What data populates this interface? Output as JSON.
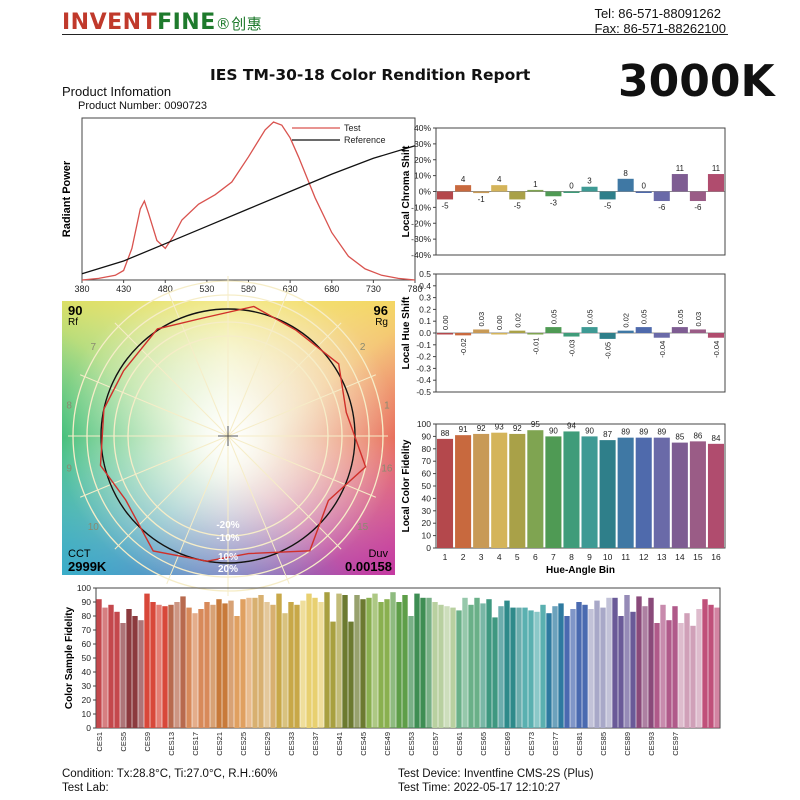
{
  "header": {
    "logo_text_left": "INVENT",
    "logo_text_right": "FINE",
    "logo_cjk": "®创惠",
    "tel": "Tel: 86-571-88091262",
    "fax": "Fax: 86-571-88262100"
  },
  "report": {
    "title": "IES TM-30-18 Color Rendition Report",
    "cct_badge": "3000K",
    "product_info_label": "Product Infomation",
    "product_number": "Product Number: 0090723"
  },
  "colors": {
    "brand_green": "#1e7a2c",
    "brand_red": "#c0392b",
    "test_line": "#d9534f",
    "reference_line": "#111111"
  },
  "chart_data": [
    {
      "type": "line",
      "title": "",
      "xlabel": "",
      "ylabel": "Radiant Power",
      "xlim": [
        380,
        780
      ],
      "x_ticks": [
        "380",
        "430",
        "480",
        "530",
        "580",
        "630",
        "680",
        "730",
        "780"
      ],
      "legend": [
        "Test",
        "Reference"
      ],
      "legend_position": "top-right",
      "series": [
        {
          "name": "Test",
          "x": [
            380,
            400,
            420,
            430,
            440,
            450,
            455,
            460,
            470,
            480,
            490,
            500,
            520,
            540,
            560,
            580,
            600,
            610,
            620,
            630,
            640,
            650,
            660,
            680,
            700,
            720,
            740,
            760,
            780
          ],
          "y": [
            0,
            0.01,
            0.03,
            0.06,
            0.2,
            0.45,
            0.5,
            0.42,
            0.25,
            0.2,
            0.28,
            0.38,
            0.48,
            0.54,
            0.62,
            0.78,
            0.95,
            1.0,
            0.98,
            0.9,
            0.78,
            0.65,
            0.52,
            0.3,
            0.15,
            0.07,
            0.03,
            0.01,
            0
          ]
        },
        {
          "name": "Reference",
          "x": [
            380,
            430,
            480,
            530,
            580,
            630,
            680,
            730,
            780
          ],
          "y": [
            0.04,
            0.12,
            0.23,
            0.34,
            0.45,
            0.56,
            0.67,
            0.77,
            0.85
          ]
        }
      ]
    },
    {
      "type": "bar",
      "title": "",
      "ylabel": "Local Chroma Shift",
      "ylim": [
        -40,
        40
      ],
      "y_ticks": [
        "40%",
        "30%",
        "20%",
        "10%",
        "0%",
        "-10%",
        "-20%",
        "-30%",
        "-40%"
      ],
      "categories": [
        "1",
        "2",
        "3",
        "4",
        "5",
        "6",
        "7",
        "8",
        "9",
        "10",
        "11",
        "12",
        "13",
        "14",
        "15",
        "16"
      ],
      "values": [
        -5,
        4,
        -1,
        4,
        -5,
        1,
        -3,
        0,
        3,
        -5,
        8,
        0,
        -6,
        11,
        -6,
        11
      ]
    },
    {
      "type": "bar",
      "title": "",
      "ylabel": "Local Hue Shift",
      "ylim": [
        -0.5,
        0.5
      ],
      "y_ticks": [
        "0.5",
        "0.4",
        "0.3",
        "0.2",
        "0.1",
        "0.0",
        "-0.1",
        "-0.2",
        "-0.3",
        "-0.4",
        "-0.5"
      ],
      "categories": [
        "1",
        "2",
        "3",
        "4",
        "5",
        "6",
        "7",
        "8",
        "9",
        "10",
        "11",
        "12",
        "13",
        "14",
        "15",
        "16"
      ],
      "values": [
        0.0,
        -0.02,
        0.03,
        0.0,
        0.02,
        -0.01,
        0.05,
        -0.03,
        0.05,
        -0.05,
        0.02,
        0.05,
        -0.04,
        0.05,
        0.03,
        -0.04
      ],
      "value_labels": [
        "0.00",
        "-0.02",
        "0.03",
        "0.00",
        "0.02",
        "-0.01",
        "0.05",
        "-0.03",
        "0.05",
        "-0.05",
        "0.02",
        "0.05",
        "-0.04",
        "0.05",
        "0.03",
        "-0.04"
      ]
    },
    {
      "type": "bar",
      "title": "",
      "xlabel": "Hue-Angle Bin",
      "ylabel": "Local Color Fidelity",
      "ylim": [
        0,
        100
      ],
      "y_ticks": [
        "0",
        "10",
        "20",
        "30",
        "40",
        "50",
        "60",
        "70",
        "80",
        "90",
        "100"
      ],
      "categories": [
        "1",
        "2",
        "3",
        "4",
        "5",
        "6",
        "7",
        "8",
        "9",
        "10",
        "11",
        "12",
        "13",
        "14",
        "15",
        "16"
      ],
      "values": [
        88,
        91,
        92,
        93,
        92,
        95,
        90,
        94,
        90,
        87,
        89,
        89,
        89,
        85,
        86,
        84
      ]
    },
    {
      "type": "bar",
      "title": "",
      "ylabel": "Color Sample Fidelity",
      "ylim": [
        0,
        100
      ],
      "y_ticks": [
        "0",
        "10",
        "20",
        "30",
        "40",
        "50",
        "60",
        "70",
        "80",
        "90",
        "100"
      ],
      "x_tick_labels": [
        "CES1",
        "CES5",
        "CES9",
        "CES13",
        "CES17",
        "CES21",
        "CES25",
        "CES29",
        "CES33",
        "CES37",
        "CES41",
        "CES45",
        "CES49",
        "CES53",
        "CES57",
        "CES61",
        "CES65",
        "CES69",
        "CES73",
        "CES77",
        "CES81",
        "CES85",
        "CES89",
        "CES93",
        "CES97"
      ],
      "values": [
        92,
        86,
        88,
        83,
        75,
        85,
        80,
        77,
        96,
        90,
        88,
        87,
        88,
        90,
        94,
        86,
        82,
        85,
        90,
        88,
        92,
        89,
        91,
        80,
        92,
        93,
        93,
        95,
        90,
        88,
        96,
        82,
        90,
        88,
        91,
        96,
        93,
        90,
        97,
        76,
        96,
        95,
        76,
        95,
        92,
        93,
        96,
        90,
        92,
        97,
        90,
        95,
        80,
        96,
        93,
        93,
        90,
        88,
        87,
        86,
        84,
        93,
        88,
        93,
        89,
        92,
        79,
        87,
        91,
        86,
        86,
        86,
        84,
        83,
        88,
        82,
        87,
        89,
        80,
        85,
        90,
        88,
        85,
        91,
        86,
        93,
        93,
        80,
        95,
        83,
        94,
        87,
        93,
        75,
        88,
        77,
        87,
        75,
        82,
        73,
        85,
        92,
        88,
        86
      ]
    }
  ],
  "polar_plot": {
    "rf_value": "90",
    "rf_label": "Rf",
    "rg_value": "96",
    "rg_label": "Rg",
    "cct_label": "CCT",
    "cct_value": "2999K",
    "duv_label": "Duv",
    "duv_value": "0.00158",
    "ring_labels": [
      "-20%",
      "-10%",
      "10%",
      "20%"
    ],
    "bin_labels": [
      "1",
      "2",
      "3",
      "4",
      "5",
      "6",
      "7",
      "8",
      "9",
      "10",
      "11",
      "12",
      "13",
      "14",
      "15",
      "16"
    ]
  },
  "footer": {
    "condition": "Condition: Tx:28.8°C, Ti:27.0°C, R.H.:60%",
    "test_lab": "Test Lab:",
    "test_device": "Test Device: Inventfine CMS-2S (Plus)",
    "test_time": "Test Time: 2022-05-17 12:10:27"
  }
}
